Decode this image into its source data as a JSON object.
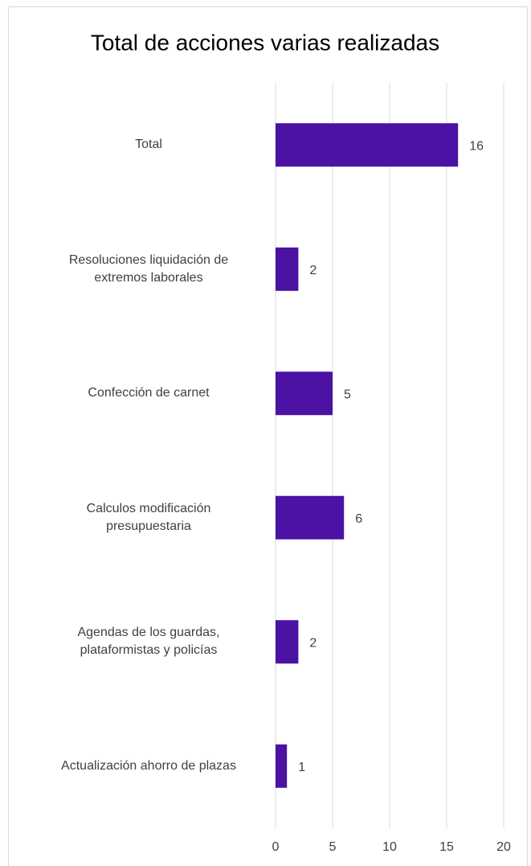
{
  "chart_data": {
    "type": "bar",
    "orientation": "horizontal",
    "title": "Total de acciones varias realizadas",
    "categories": [
      "Total",
      "Resoluciones liquidación de extremos laborales",
      "Confección de carnet",
      "Calculos modificación presupuestaria",
      "Agendas de los guardas, plataformistas y policías",
      "Actualización ahorro de plazas"
    ],
    "values": [
      16,
      2,
      5,
      6,
      2,
      1
    ],
    "color": "#4b12a4",
    "xlim": [
      0,
      20
    ],
    "xticks": [
      0,
      5,
      10,
      15,
      20
    ],
    "grid": true
  }
}
